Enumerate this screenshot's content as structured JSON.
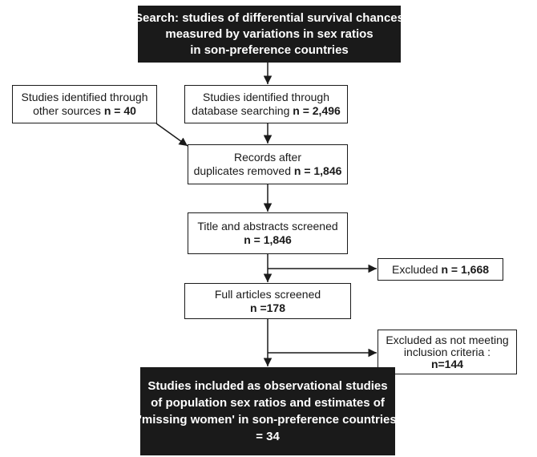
{
  "search": {
    "bold": "Search:",
    "line1": "studies of differential survival chances",
    "line2": "measured by variations in sex ratios",
    "line3": "in son-preference countries"
  },
  "other_sources": {
    "line1": "Studies identified through",
    "line2_text": "other sources",
    "line2_n": "n = 40"
  },
  "database": {
    "line1": "Studies identified through",
    "line2_text": "database searching",
    "line2_n": "n = 2,496"
  },
  "duplicates": {
    "line1": "Records after",
    "line2_text": "duplicates removed",
    "line2_n": "n = 1,846"
  },
  "screened": {
    "line1": "Title and abstracts screened",
    "line2_n": "n = 1,846"
  },
  "excluded1": {
    "text": "Excluded",
    "n": "n = 1,668"
  },
  "full_articles": {
    "line1": "Full articles screened",
    "line2_n": "n =178"
  },
  "excluded2": {
    "line1": "Excluded as not meeting",
    "line2": "inclusion criteria :",
    "line3_n": "n=144"
  },
  "included": {
    "line1": "Studies included as observational studies",
    "line2": "of population sex ratios and estimates of",
    "line3": "'missing women' in son-preference countries",
    "line4": "= 34"
  }
}
